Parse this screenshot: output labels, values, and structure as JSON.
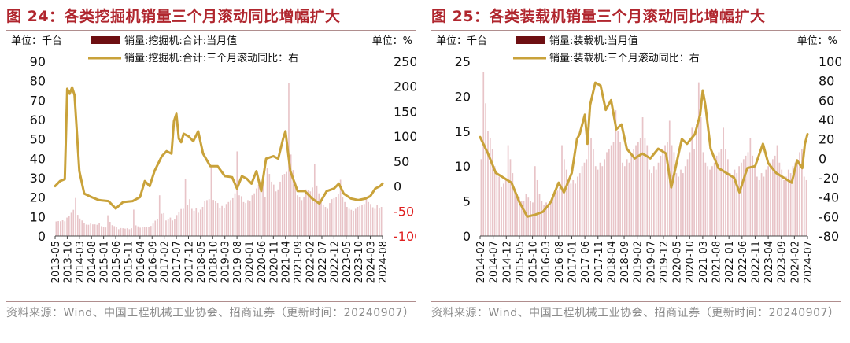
{
  "panels": [
    {
      "title": "图 24：各类挖掘机销量三个月滚动同比增幅扩大",
      "source": "资料来源：Wind、中国工程机械工业协会、招商证券（更新时间：20240907）",
      "colors": {
        "bar": "#e8c4c8",
        "legend_bar": "#6e0f12",
        "line": "#c9a23a",
        "right_neg": "#e02020",
        "text": "#111111"
      },
      "chart_data": {
        "type": "bar+line",
        "left_unit": "单位：千台",
        "right_unit": "单位：%",
        "legend": [
          "销量:挖掘机:合计:当月值",
          "销量:挖掘机:合计:三个月滚动同比：右"
        ],
        "x_tick_labels": [
          "2013-05",
          "2013-10",
          "2014-03",
          "2014-08",
          "2015-01",
          "2015-06",
          "2015-11",
          "2016-04",
          "2016-09",
          "2017-02",
          "2017-07",
          "2017-12",
          "2018-05",
          "2018-10",
          "2019-03",
          "2019-08",
          "2020-01",
          "2020-06",
          "2020-11",
          "2021-04",
          "2021-09",
          "2022-02",
          "2022-07",
          "2022-12",
          "2023-05",
          "2023-10",
          "2024-03",
          "2024-08"
        ],
        "x_start": "2013-05",
        "x_end": "2024-08",
        "ylim_left": [
          0,
          90
        ],
        "yticks_left": [
          0,
          10,
          20,
          30,
          40,
          50,
          60,
          70,
          80,
          90
        ],
        "ylim_right": [
          -100,
          250
        ],
        "yticks_right": [
          -100,
          -50,
          0,
          50,
          100,
          150,
          200,
          250
        ],
        "bars": [
          7.5,
          7.7,
          7.6,
          8.1,
          7.6,
          9.5,
          10.5,
          12.0,
          13.5,
          19.6,
          10.9,
          9.0,
          8.0,
          6.7,
          5.9,
          5.8,
          6.4,
          6.0,
          6.0,
          5.8,
          6.5,
          5.1,
          4.7,
          4.4,
          10.7,
          7.3,
          5.6,
          5.1,
          4.5,
          3.5,
          4.1,
          4.0,
          3.8,
          4.0,
          3.5,
          4.0,
          13.6,
          5.5,
          5.0,
          4.3,
          4.6,
          4.7,
          4.5,
          4.7,
          5.2,
          6.4,
          7.9,
          8.8,
          21.0,
          11.5,
          11.8,
          8.0,
          8.5,
          9.5,
          8.0,
          8.5,
          10.8,
          12.5,
          13.9,
          14.0,
          29.6,
          16.0,
          19.0,
          14.0,
          13.0,
          14.5,
          12.0,
          13.6,
          15.0,
          18.0,
          18.5,
          19.0,
          36.6,
          18.6,
          18.0,
          17.0,
          14.5,
          15.5,
          14.5,
          16.5,
          17.5,
          18.5,
          19.5,
          22.0,
          43.6,
          21.0,
          20.5,
          17.5,
          17.0,
          18.5,
          18.0,
          21.0,
          22.0,
          24.5,
          26.5,
          28.0,
          31.0,
          20.0,
          35.0,
          32.0,
          28.0,
          26.5,
          23.0,
          24.0,
          28.0,
          31.5,
          32.0,
          33.0,
          79.0,
          42.0,
          34.0,
          28.0,
          21.0,
          20.0,
          18.5,
          20.0,
          24.0,
          23.5,
          23.0,
          25.0,
          37.0,
          26.0,
          22.0,
          18.0,
          16.0,
          15.0,
          14.0,
          17.0,
          19.0,
          19.5,
          20.0,
          21.5,
          29.0,
          20.0,
          17.5,
          15.0,
          14.0,
          13.5,
          13.0,
          14.0,
          15.0,
          15.5,
          16.0,
          16.5,
          20.0,
          17.5,
          16.5,
          14.8,
          14.0,
          16.0,
          14.5,
          15.0
        ],
        "series": [
          {
            "x": "2013-05",
            "y": 0
          },
          {
            "x": "2013-07",
            "y": 10
          },
          {
            "x": "2013-09",
            "y": 14
          },
          {
            "x": "2013-10",
            "y": 195
          },
          {
            "x": "2013-11",
            "y": 185
          },
          {
            "x": "2013-12",
            "y": 198
          },
          {
            "x": "2014-01",
            "y": 182
          },
          {
            "x": "2014-03",
            "y": 30
          },
          {
            "x": "2014-05",
            "y": -15
          },
          {
            "x": "2014-08",
            "y": -22
          },
          {
            "x": "2014-11",
            "y": -28
          },
          {
            "x": "2015-03",
            "y": -30
          },
          {
            "x": "2015-06",
            "y": -45
          },
          {
            "x": "2015-09",
            "y": -32
          },
          {
            "x": "2016-01",
            "y": -30
          },
          {
            "x": "2016-04",
            "y": -22
          },
          {
            "x": "2016-06",
            "y": 10
          },
          {
            "x": "2016-08",
            "y": 0
          },
          {
            "x": "2016-10",
            "y": 30
          },
          {
            "x": "2017-01",
            "y": 60
          },
          {
            "x": "2017-03",
            "y": 70
          },
          {
            "x": "2017-05",
            "y": 65
          },
          {
            "x": "2017-06",
            "y": 130
          },
          {
            "x": "2017-07",
            "y": 145
          },
          {
            "x": "2017-08",
            "y": 95
          },
          {
            "x": "2017-09",
            "y": 88
          },
          {
            "x": "2017-10",
            "y": 105
          },
          {
            "x": "2017-12",
            "y": 100
          },
          {
            "x": "2018-02",
            "y": 90
          },
          {
            "x": "2018-04",
            "y": 110
          },
          {
            "x": "2018-06",
            "y": 65
          },
          {
            "x": "2018-09",
            "y": 40
          },
          {
            "x": "2018-12",
            "y": 40
          },
          {
            "x": "2019-03",
            "y": 20
          },
          {
            "x": "2019-06",
            "y": 18
          },
          {
            "x": "2019-08",
            "y": -5
          },
          {
            "x": "2019-10",
            "y": 20
          },
          {
            "x": "2019-12",
            "y": 15
          },
          {
            "x": "2020-02",
            "y": 5
          },
          {
            "x": "2020-04",
            "y": 30
          },
          {
            "x": "2020-06",
            "y": -10
          },
          {
            "x": "2020-08",
            "y": 55
          },
          {
            "x": "2020-11",
            "y": 60
          },
          {
            "x": "2021-01",
            "y": 55
          },
          {
            "x": "2021-03",
            "y": 95
          },
          {
            "x": "2021-04",
            "y": 110
          },
          {
            "x": "2021-06",
            "y": 30
          },
          {
            "x": "2021-09",
            "y": -10
          },
          {
            "x": "2021-12",
            "y": -10
          },
          {
            "x": "2022-03",
            "y": -25
          },
          {
            "x": "2022-06",
            "y": -35
          },
          {
            "x": "2022-09",
            "y": -10
          },
          {
            "x": "2022-12",
            "y": -5
          },
          {
            "x": "2023-02",
            "y": 5
          },
          {
            "x": "2023-04",
            "y": -15
          },
          {
            "x": "2023-07",
            "y": -25
          },
          {
            "x": "2023-10",
            "y": -28
          },
          {
            "x": "2024-01",
            "y": -25
          },
          {
            "x": "2024-03",
            "y": -20
          },
          {
            "x": "2024-05",
            "y": -5
          },
          {
            "x": "2024-07",
            "y": 0
          },
          {
            "x": "2024-08",
            "y": 5
          }
        ]
      }
    },
    {
      "title": "图 25：各类装载机销量三个月滚动同比增幅扩大",
      "source": "资料来源：Wind、中国工程机械工业协会、招商证券（更新时间：20240907）",
      "colors": {
        "bar": "#e8c4c8",
        "legend_bar": "#6e0f12",
        "line": "#c9a23a",
        "right_neg": "#111111",
        "text": "#111111"
      },
      "chart_data": {
        "type": "bar+line",
        "left_unit": "单位：千台",
        "right_unit": "单位：%",
        "legend": [
          "销量:装载机:当月值",
          "销量:装载机:三个月滚动同比：右"
        ],
        "x_tick_labels": [
          "2014-02",
          "2014-07",
          "2014-12",
          "2015-05",
          "2015-10",
          "2016-03",
          "2016-08",
          "2017-01",
          "2017-06",
          "2017-11",
          "2018-04",
          "2018-09",
          "2019-02",
          "2019-07",
          "2019-12",
          "2020-05",
          "2020-10",
          "2021-03",
          "2021-08",
          "2022-01",
          "2022-06",
          "2022-11",
          "2023-04",
          "2023-09",
          "2024-02",
          "2024-07"
        ],
        "x_start": "2014-02",
        "x_end": "2024-07",
        "ylim_left": [
          0,
          25
        ],
        "yticks_left": [
          0,
          5,
          10,
          15,
          20,
          25
        ],
        "ylim_right": [
          -80,
          100
        ],
        "yticks_right": [
          -80,
          -60,
          -40,
          -20,
          0,
          20,
          40,
          60,
          80,
          100
        ],
        "bars": [
          11.0,
          23.5,
          19.0,
          15.0,
          14.0,
          12.5,
          10.0,
          9.0,
          8.5,
          7.0,
          7.5,
          8.0,
          13.0,
          11.0,
          9.0,
          6.5,
          6.0,
          5.5,
          5.0,
          5.0,
          6.0,
          5.5,
          5.0,
          4.8,
          10.0,
          8.0,
          6.0,
          5.0,
          4.5,
          4.8,
          4.6,
          5.0,
          5.5,
          6.0,
          6.5,
          7.0,
          13.0,
          11.0,
          9.5,
          8.0,
          7.5,
          8.0,
          7.5,
          8.5,
          9.0,
          10.0,
          10.5,
          11.0,
          17.5,
          14.0,
          12.5,
          10.0,
          9.5,
          10.5,
          10.0,
          11.0,
          12.0,
          12.5,
          13.0,
          13.5,
          18.0,
          15.0,
          13.5,
          10.5,
          10.0,
          11.0,
          10.5,
          11.5,
          12.5,
          13.0,
          13.5,
          14.0,
          17.0,
          14.0,
          13.0,
          9.5,
          9.0,
          10.0,
          9.5,
          10.5,
          11.5,
          12.5,
          13.0,
          13.5,
          16.5,
          13.0,
          12.0,
          9.0,
          8.5,
          9.5,
          9.0,
          10.0,
          11.0,
          12.0,
          15.5,
          12.5,
          16.0,
          22.0,
          17.0,
          12.0,
          10.5,
          10.0,
          9.5,
          10.0,
          10.5,
          11.5,
          12.0,
          12.5,
          15.5,
          12.5,
          11.0,
          9.0,
          8.5,
          9.5,
          9.0,
          10.0,
          10.5,
          11.0,
          11.5,
          12.0,
          14.0,
          11.5,
          10.0,
          8.5,
          8.0,
          9.0,
          8.5,
          9.5,
          10.0,
          10.5,
          11.0,
          11.5,
          13.0,
          10.5,
          9.5,
          8.0,
          8.5,
          9.5,
          9.0,
          10.0,
          10.5,
          11.0,
          12.0,
          12.5,
          8.5,
          8.0
        ],
        "series": [
          {
            "x": "2014-02",
            "y": 22
          },
          {
            "x": "2014-05",
            "y": 5
          },
          {
            "x": "2014-08",
            "y": -15
          },
          {
            "x": "2014-11",
            "y": -20
          },
          {
            "x": "2015-02",
            "y": -25
          },
          {
            "x": "2015-05",
            "y": -45
          },
          {
            "x": "2015-08",
            "y": -60
          },
          {
            "x": "2015-11",
            "y": -58
          },
          {
            "x": "2016-02",
            "y": -55
          },
          {
            "x": "2016-05",
            "y": -45
          },
          {
            "x": "2016-08",
            "y": -25
          },
          {
            "x": "2016-10",
            "y": -35
          },
          {
            "x": "2017-01",
            "y": -15
          },
          {
            "x": "2017-03",
            "y": 20
          },
          {
            "x": "2017-04",
            "y": 25
          },
          {
            "x": "2017-06",
            "y": 45
          },
          {
            "x": "2017-07",
            "y": 15
          },
          {
            "x": "2017-08",
            "y": 55
          },
          {
            "x": "2017-10",
            "y": 78
          },
          {
            "x": "2017-12",
            "y": 75
          },
          {
            "x": "2018-02",
            "y": 50
          },
          {
            "x": "2018-04",
            "y": 60
          },
          {
            "x": "2018-06",
            "y": 30
          },
          {
            "x": "2018-08",
            "y": 35
          },
          {
            "x": "2018-10",
            "y": 10
          },
          {
            "x": "2019-01",
            "y": 0
          },
          {
            "x": "2019-04",
            "y": 5
          },
          {
            "x": "2019-07",
            "y": 0
          },
          {
            "x": "2019-10",
            "y": 10
          },
          {
            "x": "2020-01",
            "y": 5
          },
          {
            "x": "2020-03",
            "y": -30
          },
          {
            "x": "2020-05",
            "y": -5
          },
          {
            "x": "2020-07",
            "y": 20
          },
          {
            "x": "2020-09",
            "y": 15
          },
          {
            "x": "2020-12",
            "y": 25
          },
          {
            "x": "2021-02",
            "y": 45
          },
          {
            "x": "2021-03",
            "y": 70
          },
          {
            "x": "2021-04",
            "y": 55
          },
          {
            "x": "2021-06",
            "y": 10
          },
          {
            "x": "2021-09",
            "y": -10
          },
          {
            "x": "2021-12",
            "y": -15
          },
          {
            "x": "2022-03",
            "y": -20
          },
          {
            "x": "2022-05",
            "y": -35
          },
          {
            "x": "2022-08",
            "y": -10
          },
          {
            "x": "2022-11",
            "y": -8
          },
          {
            "x": "2023-02",
            "y": 15
          },
          {
            "x": "2023-04",
            "y": -5
          },
          {
            "x": "2023-07",
            "y": -15
          },
          {
            "x": "2023-10",
            "y": -20
          },
          {
            "x": "2024-01",
            "y": -25
          },
          {
            "x": "2024-03",
            "y": -2
          },
          {
            "x": "2024-05",
            "y": -10
          },
          {
            "x": "2024-06",
            "y": 15
          },
          {
            "x": "2024-07",
            "y": 25
          }
        ]
      }
    }
  ]
}
